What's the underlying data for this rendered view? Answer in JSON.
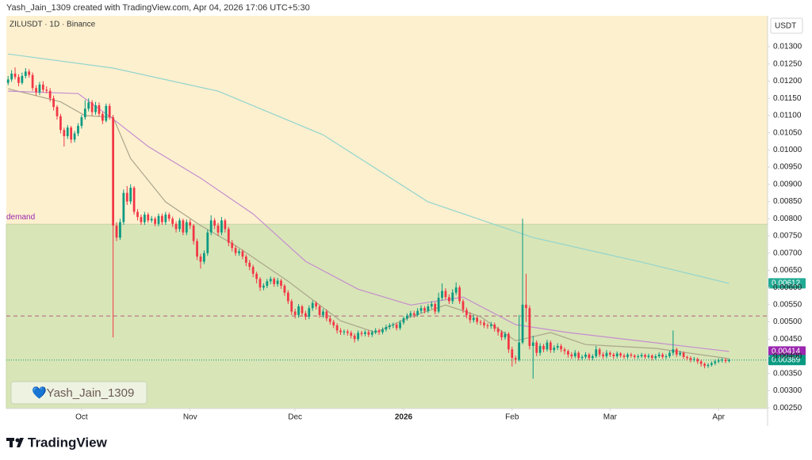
{
  "header": {
    "credit": "Yash_Jain_1309 created with TradingView.com, Apr 04, 2026 17:06 UTC+5:30"
  },
  "chart_data": {
    "type": "candlestick",
    "title": "ZILUSDT · 1D · Binance",
    "currency": "USDT",
    "up_color": "#089981",
    "down_color": "#f23645",
    "open": [
      0.01195,
      0.01205,
      0.01222,
      0.01212,
      0.01195,
      0.01215,
      0.01228,
      0.01218,
      0.0118,
      0.01168,
      0.0119,
      0.01175,
      0.01172,
      0.0115,
      0.01125,
      0.01098,
      0.01058,
      0.0104,
      0.01065,
      0.0103,
      0.01048,
      0.0107,
      0.01095,
      0.0112,
      0.01138,
      0.0111,
      0.0113,
      0.01105,
      0.01085,
      0.01128,
      0.01095,
      0.0078,
      0.00745,
      0.0079,
      0.00875,
      0.0085,
      0.0089,
      0.0082,
      0.00805,
      0.0079,
      0.00812,
      0.00795,
      0.008,
      0.00785,
      0.00808,
      0.0079,
      0.00812,
      0.008,
      0.00785,
      0.0077,
      0.00795,
      0.0076,
      0.0079,
      0.0078,
      0.00735,
      0.0069,
      0.00675,
      0.007,
      0.0076,
      0.00795,
      0.0078,
      0.0076,
      0.00795,
      0.0077,
      0.0073,
      0.00715,
      0.007,
      0.00705,
      0.0069,
      0.00672,
      0.0066,
      0.0064,
      0.00625,
      0.006,
      0.00605,
      0.00618,
      0.00625,
      0.0061,
      0.0062,
      0.00605,
      0.00585,
      0.0056,
      0.0053,
      0.0052,
      0.00545,
      0.00525,
      0.00515,
      0.0054,
      0.00555,
      0.00545,
      0.0052,
      0.0053,
      0.0051,
      0.005,
      0.0049,
      0.00475,
      0.0047,
      0.00472,
      0.00468,
      0.0046,
      0.0045,
      0.00468,
      0.00465,
      0.0047,
      0.00463,
      0.0047,
      0.00475,
      0.0047,
      0.00478,
      0.00485,
      0.0049,
      0.00492,
      0.00482,
      0.00498,
      0.0051,
      0.00518,
      0.00525,
      0.0052,
      0.00532,
      0.0054,
      0.00532,
      0.00545,
      0.00552,
      0.0053,
      0.0057,
      0.0059,
      0.00572,
      0.0056,
      0.00585,
      0.006,
      0.0056,
      0.00535,
      0.0052,
      0.00505,
      0.00512,
      0.005,
      0.00498,
      0.0049,
      0.00488,
      0.00492,
      0.0048,
      0.0047,
      0.00455,
      0.00465,
      0.0042,
      0.00395,
      0.0039,
      0.0044,
      0.0055,
      0.0054,
      0.0043,
      0.0044,
      0.0041,
      0.0043,
      0.0042,
      0.0044,
      0.00418,
      0.00425,
      0.0043,
      0.0042,
      0.00415,
      0.00405,
      0.004,
      0.0041,
      0.00395,
      0.00398,
      0.00405,
      0.00395,
      0.004,
      0.0042,
      0.00405,
      0.004,
      0.0041,
      0.00405,
      0.004,
      0.00408,
      0.00402,
      0.00398,
      0.00405,
      0.00402,
      0.00398,
      0.004,
      0.00404,
      0.00398,
      0.00402,
      0.00395,
      0.004,
      0.00405,
      0.00398,
      0.004,
      0.0041,
      0.0042,
      0.00405,
      0.0041,
      0.00398,
      0.00395,
      0.0039,
      0.00392,
      0.00385,
      0.00378,
      0.00372,
      0.00375,
      0.0038,
      0.00385,
      0.00388,
      0.0039,
      0.00386
    ],
    "high": [
      0.01215,
      0.01232,
      0.0124,
      0.0122,
      0.01225,
      0.01238,
      0.01235,
      0.01225,
      0.01188,
      0.01198,
      0.012,
      0.01185,
      0.0118,
      0.01158,
      0.0113,
      0.01105,
      0.01065,
      0.01072,
      0.0107,
      0.01055,
      0.01078,
      0.01102,
      0.01145,
      0.0115,
      0.01145,
      0.0114,
      0.01138,
      0.01112,
      0.01135,
      0.01135,
      0.01102,
      0.0079,
      0.008,
      0.00885,
      0.00895,
      0.009,
      0.00895,
      0.00828,
      0.00812,
      0.0082,
      0.00818,
      0.00808,
      0.00806,
      0.00815,
      0.00815,
      0.0082,
      0.00818,
      0.00806,
      0.00792,
      0.00802,
      0.008,
      0.00798,
      0.00798,
      0.00785,
      0.00742,
      0.00698,
      0.00708,
      0.00768,
      0.0081,
      0.00802,
      0.00788,
      0.00805,
      0.008,
      0.00776,
      0.00738,
      0.00722,
      0.00712,
      0.0071,
      0.00696,
      0.0068,
      0.00666,
      0.00646,
      0.0063,
      0.00612,
      0.00625,
      0.00632,
      0.0063,
      0.00628,
      0.00625,
      0.0061,
      0.00592,
      0.00566,
      0.00538,
      0.00552,
      0.0055,
      0.00532,
      0.00548,
      0.00562,
      0.0056,
      0.0055,
      0.00538,
      0.00536,
      0.00516,
      0.00506,
      0.00496,
      0.00482,
      0.00478,
      0.00478,
      0.00474,
      0.00466,
      0.00475,
      0.00474,
      0.00476,
      0.00476,
      0.00476,
      0.00482,
      0.0048,
      0.00484,
      0.00492,
      0.00496,
      0.00498,
      0.00498,
      0.00505,
      0.00516,
      0.00525,
      0.00532,
      0.00532,
      0.0054,
      0.00548,
      0.00546,
      0.00552,
      0.0056,
      0.00558,
      0.00585,
      0.00612,
      0.00598,
      0.0058,
      0.00595,
      0.00615,
      0.00606,
      0.00566,
      0.00542,
      0.00528,
      0.0052,
      0.00518,
      0.00506,
      0.00505,
      0.00496,
      0.005,
      0.00498,
      0.00486,
      0.00476,
      0.00472,
      0.0047,
      0.00428,
      0.00402,
      0.0052,
      0.008,
      0.0064,
      0.00548,
      0.0046,
      0.00446,
      0.00438,
      0.00436,
      0.00448,
      0.00446,
      0.00432,
      0.00438,
      0.00436,
      0.00426,
      0.0042,
      0.00412,
      0.00418,
      0.00415,
      0.00404,
      0.00412,
      0.0041,
      0.00406,
      0.0043,
      0.00425,
      0.00412,
      0.00418,
      0.00415,
      0.0041,
      0.00414,
      0.00412,
      0.00408,
      0.0041,
      0.0041,
      0.00406,
      0.00406,
      0.0041,
      0.00408,
      0.00408,
      0.00406,
      0.00406,
      0.00412,
      0.0041,
      0.00406,
      0.00416,
      0.00475,
      0.00425,
      0.00416,
      0.00414,
      0.00402,
      0.004,
      0.00398,
      0.00396,
      0.0039,
      0.00382,
      0.0038,
      0.00385,
      0.0039,
      0.00394,
      0.00395,
      0.00394,
      0.00393
    ],
    "low": [
      0.01188,
      0.01198,
      0.01205,
      0.01185,
      0.0119,
      0.01208,
      0.0121,
      0.01172,
      0.01158,
      0.0116,
      0.01168,
      0.01165,
      0.0114,
      0.01115,
      0.01088,
      0.01048,
      0.0101,
      0.01032,
      0.0102,
      0.01022,
      0.0104,
      0.01062,
      0.01088,
      0.01112,
      0.011,
      0.01102,
      0.01098,
      0.01075,
      0.0108,
      0.01088,
      0.00455,
      0.00735,
      0.00738,
      0.00782,
      0.0084,
      0.00842,
      0.00812,
      0.00795,
      0.00782,
      0.00782,
      0.00788,
      0.00788,
      0.00778,
      0.00778,
      0.00782,
      0.00782,
      0.00792,
      0.00776,
      0.0076,
      0.00762,
      0.00752,
      0.00752,
      0.0077,
      0.00725,
      0.0068,
      0.00655,
      0.00668,
      0.00692,
      0.00752,
      0.0077,
      0.0075,
      0.00752,
      0.0076,
      0.0072,
      0.00705,
      0.00692,
      0.00692,
      0.00682,
      0.00662,
      0.0065,
      0.0063,
      0.00612,
      0.0059,
      0.00592,
      0.00598,
      0.0061,
      0.00602,
      0.00602,
      0.00596,
      0.00576,
      0.00552,
      0.0052,
      0.0051,
      0.00512,
      0.00516,
      0.00506,
      0.00508,
      0.00532,
      0.00536,
      0.00512,
      0.00512,
      0.00502,
      0.00492,
      0.00482,
      0.00466,
      0.00462,
      0.00462,
      0.0046,
      0.00452,
      0.0044,
      0.00444,
      0.00458,
      0.00458,
      0.00456,
      0.00456,
      0.00464,
      0.00462,
      0.00464,
      0.00472,
      0.00478,
      0.00482,
      0.00475,
      0.00476,
      0.00492,
      0.00504,
      0.00512,
      0.00512,
      0.00515,
      0.00525,
      0.00525,
      0.00526,
      0.00538,
      0.00522,
      0.00525,
      0.00562,
      0.00565,
      0.00552,
      0.00552,
      0.00578,
      0.00552,
      0.00526,
      0.0051,
      0.00496,
      0.00498,
      0.00492,
      0.0049,
      0.00482,
      0.0048,
      0.0048,
      0.00472,
      0.0046,
      0.00446,
      0.00448,
      0.0041,
      0.0037,
      0.00378,
      0.00385,
      0.00435,
      0.005,
      0.0042,
      0.00335,
      0.004,
      0.00402,
      0.00412,
      0.00414,
      0.0041,
      0.0041,
      0.00418,
      0.00412,
      0.00405,
      0.00396,
      0.00392,
      0.00394,
      0.00388,
      0.00388,
      0.00392,
      0.00388,
      0.00388,
      0.00395,
      0.00398,
      0.00392,
      0.00394,
      0.00398,
      0.00392,
      0.00394,
      0.00396,
      0.00392,
      0.00392,
      0.00396,
      0.00392,
      0.00392,
      0.00395,
      0.00392,
      0.00393,
      0.00388,
      0.0039,
      0.00395,
      0.00392,
      0.00392,
      0.00395,
      0.00402,
      0.00398,
      0.004,
      0.00392,
      0.00388,
      0.00382,
      0.00384,
      0.00378,
      0.0037,
      0.00365,
      0.00366,
      0.0037,
      0.00374,
      0.0038,
      0.00382,
      0.0038,
      0.00382
    ],
    "close": [
      0.01205,
      0.01222,
      0.01212,
      0.01195,
      0.01215,
      0.01228,
      0.01218,
      0.0118,
      0.01168,
      0.0119,
      0.01175,
      0.01172,
      0.0115,
      0.01125,
      0.01098,
      0.01058,
      0.0104,
      0.01065,
      0.0103,
      0.01048,
      0.0107,
      0.01095,
      0.0112,
      0.01138,
      0.0111,
      0.0113,
      0.01105,
      0.01085,
      0.01128,
      0.01095,
      0.0078,
      0.00745,
      0.0079,
      0.00875,
      0.0085,
      0.0089,
      0.0082,
      0.00805,
      0.0079,
      0.00812,
      0.00795,
      0.008,
      0.00785,
      0.00808,
      0.0079,
      0.00812,
      0.008,
      0.00785,
      0.0077,
      0.00795,
      0.0076,
      0.0079,
      0.0078,
      0.00735,
      0.0069,
      0.00675,
      0.007,
      0.0076,
      0.00795,
      0.0078,
      0.0076,
      0.00795,
      0.0077,
      0.0073,
      0.00715,
      0.007,
      0.00705,
      0.0069,
      0.00672,
      0.0066,
      0.0064,
      0.00625,
      0.006,
      0.00605,
      0.00618,
      0.00625,
      0.0061,
      0.0062,
      0.00605,
      0.00585,
      0.0056,
      0.0053,
      0.0052,
      0.00545,
      0.00525,
      0.00515,
      0.0054,
      0.00555,
      0.00545,
      0.0052,
      0.0053,
      0.0051,
      0.005,
      0.0049,
      0.00475,
      0.0047,
      0.00472,
      0.00468,
      0.0046,
      0.0045,
      0.00468,
      0.00465,
      0.0047,
      0.00463,
      0.0047,
      0.00475,
      0.0047,
      0.00478,
      0.00485,
      0.0049,
      0.00492,
      0.00482,
      0.00498,
      0.0051,
      0.00518,
      0.00525,
      0.0052,
      0.00532,
      0.0054,
      0.00532,
      0.00545,
      0.00552,
      0.0053,
      0.0057,
      0.0059,
      0.00572,
      0.0056,
      0.00585,
      0.006,
      0.0056,
      0.00535,
      0.0052,
      0.00505,
      0.00512,
      0.005,
      0.00498,
      0.0049,
      0.00488,
      0.00492,
      0.0048,
      0.0047,
      0.00455,
      0.00465,
      0.0042,
      0.00395,
      0.0039,
      0.0044,
      0.0055,
      0.0054,
      0.0043,
      0.0044,
      0.0041,
      0.0043,
      0.0042,
      0.0044,
      0.00418,
      0.00425,
      0.0043,
      0.0042,
      0.00415,
      0.00405,
      0.004,
      0.0041,
      0.00395,
      0.00398,
      0.00405,
      0.00395,
      0.004,
      0.0042,
      0.00405,
      0.004,
      0.0041,
      0.00405,
      0.004,
      0.00408,
      0.00402,
      0.00398,
      0.00405,
      0.00402,
      0.00398,
      0.004,
      0.00404,
      0.00398,
      0.00402,
      0.00395,
      0.004,
      0.00405,
      0.00398,
      0.004,
      0.0041,
      0.0042,
      0.00405,
      0.0041,
      0.00398,
      0.00395,
      0.0039,
      0.00392,
      0.00385,
      0.00378,
      0.00372,
      0.00375,
      0.0038,
      0.00385,
      0.00388,
      0.0039,
      0.00386,
      0.00389
    ],
    "last_color": "#089981",
    "series": [
      {
        "color": "#aaa68b",
        "label_color": "#5d606b",
        "x": [
          0,
          15,
          22,
          30,
          35,
          45,
          55,
          65,
          80,
          95,
          105,
          115,
          125,
          135,
          145,
          155,
          165,
          185,
          206
        ],
        "values": [
          0.01178,
          0.0114,
          0.011,
          0.01095,
          0.00975,
          0.00849,
          0.0078,
          0.00722,
          0.00618,
          0.00503,
          0.00469,
          0.00515,
          0.00549,
          0.00515,
          0.00445,
          0.00469,
          0.00434,
          0.00423,
          0.00393
        ]
      },
      {
        "color": "#c58dcf",
        "label_color": "#9c27b0",
        "x": [
          0,
          20,
          30,
          40,
          55,
          70,
          85,
          100,
          115,
          130,
          145,
          160,
          180,
          206
        ],
        "values": [
          0.01171,
          0.01164,
          0.0109,
          0.0101,
          0.00918,
          0.00814,
          0.00676,
          0.00595,
          0.00549,
          0.00572,
          0.00492,
          0.00469,
          0.00445,
          0.00414
        ]
      },
      {
        "color": "#92d5cd",
        "label_color": "#22ab94",
        "x": [
          0,
          30,
          60,
          90,
          120,
          150,
          180,
          206
        ],
        "values": [
          0.01279,
          0.01238,
          0.01171,
          0.01044,
          0.00849,
          0.00745,
          0.00676,
          0.00612
        ]
      }
    ],
    "zone": {
      "label": "demand",
      "top": 0.00784,
      "bottom": 0.00248,
      "color": "#d8e5b7",
      "label_color": "#9c27b0"
    },
    "hlines": [
      {
        "value": 0.00517,
        "color": "#b4607c",
        "style": "dashed"
      }
    ],
    "xlim": [
      -0.5,
      217
    ],
    "xticks": [
      {
        "value": 21,
        "label": "Oct"
      },
      {
        "value": 52,
        "label": "Nov"
      },
      {
        "value": 82,
        "label": "Dec"
      },
      {
        "value": 113,
        "label": "2026"
      },
      {
        "value": 144,
        "label": "Feb"
      },
      {
        "value": 172,
        "label": "Mar"
      },
      {
        "value": 203,
        "label": "Apr"
      }
    ],
    "ylim": [
      0.00248,
      0.0139
    ],
    "yticks": [
      {
        "value": 0.0025,
        "label": "0.00250"
      },
      {
        "value": 0.003,
        "label": "0.00300"
      },
      {
        "value": 0.0035,
        "label": "0.00350"
      },
      {
        "value": 0.004,
        "label": "0.00400"
      },
      {
        "value": 0.0045,
        "label": "0.00450"
      },
      {
        "value": 0.005,
        "label": "0.00500"
      },
      {
        "value": 0.0055,
        "label": "0.00550"
      },
      {
        "value": 0.006,
        "label": "0.00600"
      },
      {
        "value": 0.0065,
        "label": "0.00650"
      },
      {
        "value": 0.007,
        "label": "0.00700"
      },
      {
        "value": 0.0075,
        "label": "0.00750"
      },
      {
        "value": 0.008,
        "label": "0.00800"
      },
      {
        "value": 0.0085,
        "label": "0.00850"
      },
      {
        "value": 0.009,
        "label": "0.00900"
      },
      {
        "value": 0.0095,
        "label": "0.00950"
      },
      {
        "value": 0.01,
        "label": "0.01000"
      },
      {
        "value": 0.0105,
        "label": "0.01050"
      },
      {
        "value": 0.011,
        "label": "0.01100"
      },
      {
        "value": 0.0115,
        "label": "0.01150"
      },
      {
        "value": 0.012,
        "label": "0.01200"
      },
      {
        "value": 0.0125,
        "label": "0.01250"
      },
      {
        "value": 0.013,
        "label": "0.01300"
      }
    ],
    "watermark": "💙Yash_Jain_1309"
  },
  "footer": {
    "logo": "TradingView"
  }
}
